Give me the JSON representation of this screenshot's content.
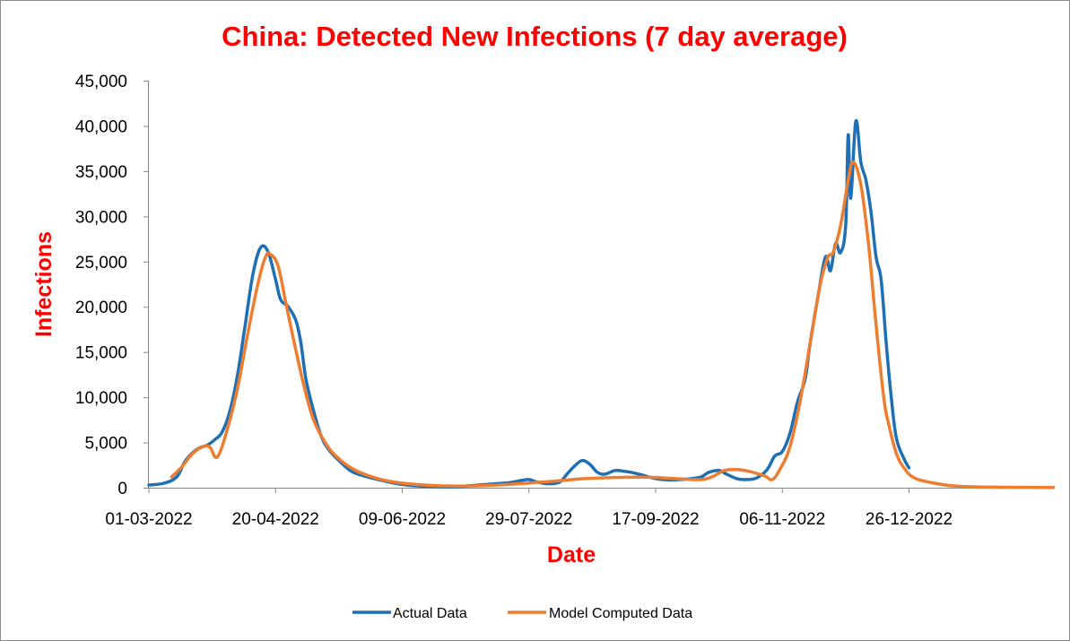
{
  "chart_data": {
    "type": "line",
    "title": "China: Detected New Infections (7 day average)",
    "xlabel": "Date",
    "ylabel": "Infections",
    "x_tick_labels": [
      "01-03-2022",
      "20-04-2022",
      "09-06-2022",
      "29-07-2022",
      "17-09-2022",
      "06-11-2022",
      "26-12-2022"
    ],
    "y_tick_labels": [
      "0",
      "5,000",
      "10,000",
      "15,000",
      "20,000",
      "25,000",
      "30,000",
      "35,000",
      "40,000",
      "45,000"
    ],
    "ylim": [
      0,
      45000
    ],
    "xlim": [
      "01-03-2022",
      "21-02-2023"
    ],
    "grid": false,
    "legend_position": "bottom",
    "series": [
      {
        "name": "Actual Data",
        "color": "#1f6fb5",
        "points": [
          [
            "01-03-2022",
            300
          ],
          [
            "07-03-2022",
            500
          ],
          [
            "12-03-2022",
            1200
          ],
          [
            "15-03-2022",
            2800
          ],
          [
            "18-03-2022",
            3800
          ],
          [
            "21-03-2022",
            4400
          ],
          [
            "24-03-2022",
            4700
          ],
          [
            "27-03-2022",
            5300
          ],
          [
            "30-03-2022",
            6200
          ],
          [
            "02-04-2022",
            8500
          ],
          [
            "05-04-2022",
            12500
          ],
          [
            "08-04-2022",
            18000
          ],
          [
            "11-04-2022",
            23500
          ],
          [
            "14-04-2022",
            26500
          ],
          [
            "17-04-2022",
            26100
          ],
          [
            "20-04-2022",
            23000
          ],
          [
            "22-04-2022",
            20800
          ],
          [
            "25-04-2022",
            20000
          ],
          [
            "28-04-2022",
            18500
          ],
          [
            "30-04-2022",
            16000
          ],
          [
            "02-05-2022",
            12000
          ],
          [
            "05-05-2022",
            8500
          ],
          [
            "08-05-2022",
            5700
          ],
          [
            "11-05-2022",
            4200
          ],
          [
            "15-05-2022",
            3000
          ],
          [
            "20-05-2022",
            1800
          ],
          [
            "25-05-2022",
            1300
          ],
          [
            "01-06-2022",
            800
          ],
          [
            "08-06-2022",
            400
          ],
          [
            "15-06-2022",
            200
          ],
          [
            "22-06-2022",
            120
          ],
          [
            "30-06-2022",
            100
          ],
          [
            "07-07-2022",
            250
          ],
          [
            "14-07-2022",
            400
          ],
          [
            "21-07-2022",
            550
          ],
          [
            "26-07-2022",
            800
          ],
          [
            "29-07-2022",
            900
          ],
          [
            "01-08-2022",
            650
          ],
          [
            "05-08-2022",
            450
          ],
          [
            "10-08-2022",
            600
          ],
          [
            "13-08-2022",
            1500
          ],
          [
            "16-08-2022",
            2400
          ],
          [
            "19-08-2022",
            3000
          ],
          [
            "22-08-2022",
            2600
          ],
          [
            "25-08-2022",
            1700
          ],
          [
            "28-08-2022",
            1500
          ],
          [
            "01-09-2022",
            1900
          ],
          [
            "05-09-2022",
            1800
          ],
          [
            "09-09-2022",
            1600
          ],
          [
            "13-09-2022",
            1300
          ],
          [
            "17-09-2022",
            1000
          ],
          [
            "22-09-2022",
            850
          ],
          [
            "27-09-2022",
            900
          ],
          [
            "01-10-2022",
            1000
          ],
          [
            "05-10-2022",
            1200
          ],
          [
            "08-10-2022",
            1700
          ],
          [
            "12-10-2022",
            1900
          ],
          [
            "15-10-2022",
            1500
          ],
          [
            "19-10-2022",
            1000
          ],
          [
            "23-10-2022",
            900
          ],
          [
            "27-10-2022",
            1100
          ],
          [
            "31-10-2022",
            2000
          ],
          [
            "03-11-2022",
            3500
          ],
          [
            "06-11-2022",
            4000
          ],
          [
            "09-11-2022",
            6000
          ],
          [
            "12-11-2022",
            9500
          ],
          [
            "15-11-2022",
            12000
          ],
          [
            "17-11-2022",
            16000
          ],
          [
            "20-11-2022",
            21000
          ],
          [
            "23-11-2022",
            25500
          ],
          [
            "25-11-2022",
            24000
          ],
          [
            "27-11-2022",
            27000
          ],
          [
            "29-11-2022",
            26000
          ],
          [
            "01-12-2022",
            29000
          ],
          [
            "02-12-2022",
            39000
          ],
          [
            "03-12-2022",
            32000
          ],
          [
            "05-12-2022",
            40500
          ],
          [
            "07-12-2022",
            36000
          ],
          [
            "09-12-2022",
            34000
          ],
          [
            "11-12-2022",
            30500
          ],
          [
            "13-12-2022",
            25500
          ],
          [
            "15-12-2022",
            23000
          ],
          [
            "17-12-2022",
            16000
          ],
          [
            "19-12-2022",
            10000
          ],
          [
            "21-12-2022",
            5500
          ],
          [
            "24-12-2022",
            3200
          ],
          [
            "26-12-2022",
            2200
          ]
        ]
      },
      {
        "name": "Model Computed Data",
        "color": "#ed7d31",
        "points": [
          [
            "10-03-2022",
            1200
          ],
          [
            "14-03-2022",
            2300
          ],
          [
            "18-03-2022",
            3700
          ],
          [
            "22-03-2022",
            4500
          ],
          [
            "25-03-2022",
            4500
          ],
          [
            "28-03-2022",
            3400
          ],
          [
            "01-04-2022",
            6500
          ],
          [
            "05-04-2022",
            11000
          ],
          [
            "09-04-2022",
            17000
          ],
          [
            "13-04-2022",
            22500
          ],
          [
            "16-04-2022",
            25500
          ],
          [
            "18-04-2022",
            25800
          ],
          [
            "21-04-2022",
            24500
          ],
          [
            "24-04-2022",
            20500
          ],
          [
            "27-04-2022",
            16500
          ],
          [
            "01-05-2022",
            11500
          ],
          [
            "05-05-2022",
            7500
          ],
          [
            "10-05-2022",
            4800
          ],
          [
            "15-05-2022",
            3200
          ],
          [
            "21-05-2022",
            2000
          ],
          [
            "28-05-2022",
            1200
          ],
          [
            "05-06-2022",
            650
          ],
          [
            "15-06-2022",
            350
          ],
          [
            "25-06-2022",
            200
          ],
          [
            "07-07-2022",
            200
          ],
          [
            "20-07-2022",
            350
          ],
          [
            "05-08-2022",
            650
          ],
          [
            "20-08-2022",
            1000
          ],
          [
            "05-09-2022",
            1150
          ],
          [
            "15-09-2022",
            1150
          ],
          [
            "25-09-2022",
            1000
          ],
          [
            "05-10-2022",
            900
          ],
          [
            "10-10-2022",
            1300
          ],
          [
            "14-10-2022",
            1900
          ],
          [
            "19-10-2022",
            2000
          ],
          [
            "24-10-2022",
            1800
          ],
          [
            "30-10-2022",
            1300
          ],
          [
            "02-11-2022",
            900
          ],
          [
            "05-11-2022",
            2000
          ],
          [
            "09-11-2022",
            4500
          ],
          [
            "13-11-2022",
            9500
          ],
          [
            "17-11-2022",
            16000
          ],
          [
            "21-11-2022",
            22500
          ],
          [
            "24-11-2022",
            25500
          ],
          [
            "26-11-2022",
            26000
          ],
          [
            "29-11-2022",
            29000
          ],
          [
            "02-12-2022",
            34000
          ],
          [
            "04-12-2022",
            36000
          ],
          [
            "07-12-2022",
            33500
          ],
          [
            "10-12-2022",
            27000
          ],
          [
            "13-12-2022",
            18000
          ],
          [
            "16-12-2022",
            10000
          ],
          [
            "18-12-2022",
            7000
          ],
          [
            "21-12-2022",
            3800
          ],
          [
            "24-12-2022",
            2200
          ],
          [
            "28-12-2022",
            1100
          ],
          [
            "05-01-2023",
            500
          ],
          [
            "15-01-2023",
            150
          ],
          [
            "01-02-2023",
            50
          ],
          [
            "21-02-2023",
            20
          ]
        ]
      }
    ]
  }
}
